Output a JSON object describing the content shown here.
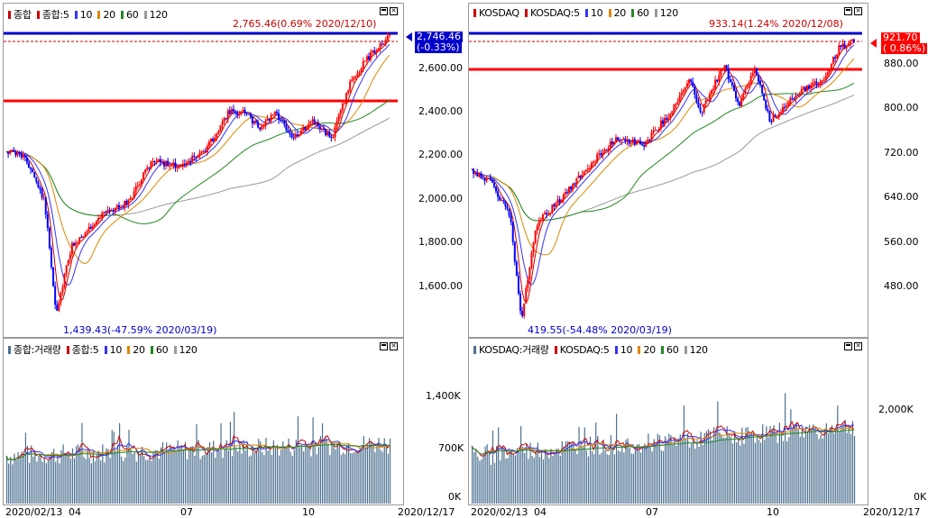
{
  "left": {
    "price_legend": {
      "series": "종합",
      "ma_prefix": "종합:5",
      "ma10": "10",
      "ma20": "20",
      "ma60": "60",
      "ma120": "120"
    },
    "volume_legend": {
      "series": "종합:거래량",
      "ma_prefix": "종합:5",
      "ma10": "10",
      "ma20": "20",
      "ma60": "60",
      "ma120": "120"
    },
    "y_ticks": [
      "2,600.00",
      "2,400.00",
      "2,200.00",
      "2,000.00",
      "1,800.00",
      "1,600.00"
    ],
    "vol_ticks": [
      "1,400K",
      "700K",
      "0K"
    ],
    "current_price": "2,746.46",
    "current_change": "(-0.33%)",
    "high_annotation": "2,765.46(0.69% 2020/12/10)",
    "low_annotation": "1,439.43(-47.59% 2020/03/19)",
    "x_labels": [
      "2020/02/13",
      "04",
      "07",
      "10",
      "2020/12/17"
    ],
    "accent_color": "#0000cc"
  },
  "right": {
    "price_legend": {
      "series": "KOSDAQ",
      "ma_prefix": "KOSDAQ:5",
      "ma10": "10",
      "ma20": "20",
      "ma60": "60",
      "ma120": "120"
    },
    "volume_legend": {
      "series": "KOSDAQ:거래량",
      "ma_prefix": "KOSDAQ:5",
      "ma10": "10",
      "ma20": "20",
      "ma60": "60",
      "ma120": "120"
    },
    "y_ticks": [
      "880.00",
      "800.00",
      "720.00",
      "640.00",
      "560.00",
      "480.00"
    ],
    "vol_ticks": [
      "2,000K",
      "0K"
    ],
    "current_price": "921.70",
    "current_change": "( 0.86%)",
    "high_annotation": "933.14(1.24% 2020/12/08)",
    "low_annotation": "419.55(-54.48% 2020/03/19)",
    "x_labels": [
      "2020/02/13",
      "04",
      "07",
      "10",
      "2020/12/17"
    ],
    "accent_color": "#ff0000"
  },
  "colors": {
    "up": "#ff0000",
    "down": "#0000ff",
    "ma5": "#cc0000",
    "ma10": "#3333ff",
    "ma20": "#dd8800",
    "ma60": "#228822",
    "ma120": "#999999",
    "volume": "#4a6f8f"
  }
}
